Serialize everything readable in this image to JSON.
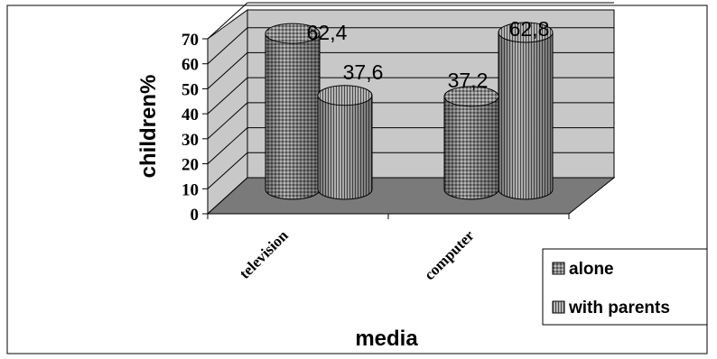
{
  "chart_data": {
    "type": "bar",
    "style": "3d-cylinder",
    "categories": [
      "television",
      "computer"
    ],
    "series": [
      {
        "name": "alone",
        "values": [
          62.4,
          37.2
        ],
        "color": "#7a7a7a",
        "pattern": "dots"
      },
      {
        "name": "with parents",
        "values": [
          37.6,
          62.8
        ],
        "color": "#a0a0a0",
        "pattern": "vertical-stripes"
      }
    ],
    "data_labels": [
      "62,4",
      "37,6",
      "37,2",
      "62,8"
    ],
    "xlabel": "media",
    "ylabel": "children%",
    "ylim": [
      0,
      70
    ],
    "yticks": [
      "0",
      "10",
      "20",
      "30",
      "40",
      "50",
      "60",
      "70"
    ],
    "grid": true,
    "legend_position": "right",
    "colors": {
      "back_wall": "#c8c8c8",
      "floor": "#7a7a7a",
      "gridline": "#000000"
    }
  }
}
